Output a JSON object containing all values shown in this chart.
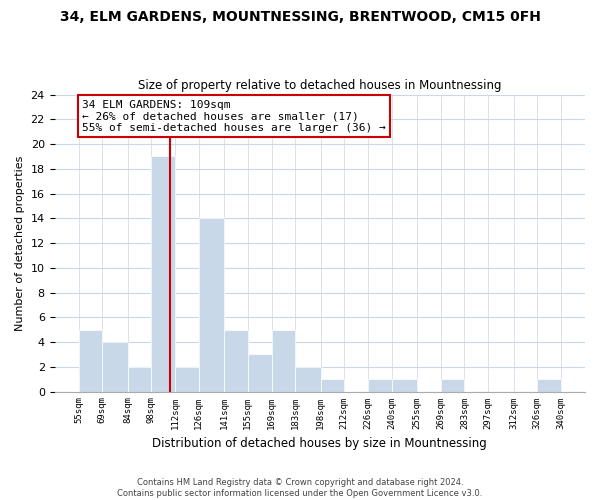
{
  "title": "34, ELM GARDENS, MOUNTNESSING, BRENTWOOD, CM15 0FH",
  "subtitle": "Size of property relative to detached houses in Mountnessing",
  "xlabel": "Distribution of detached houses by size in Mountnessing",
  "ylabel": "Number of detached properties",
  "bin_edges": [
    55,
    69,
    84,
    98,
    112,
    126,
    141,
    155,
    169,
    183,
    198,
    212,
    226,
    240,
    255,
    269,
    283,
    297,
    312,
    326,
    340
  ],
  "bin_labels": [
    "55sqm",
    "69sqm",
    "84sqm",
    "98sqm",
    "112sqm",
    "126sqm",
    "141sqm",
    "155sqm",
    "169sqm",
    "183sqm",
    "198sqm",
    "212sqm",
    "226sqm",
    "240sqm",
    "255sqm",
    "269sqm",
    "283sqm",
    "297sqm",
    "312sqm",
    "326sqm",
    "340sqm"
  ],
  "counts": [
    5,
    4,
    2,
    19,
    2,
    14,
    5,
    3,
    5,
    2,
    1,
    0,
    1,
    1,
    0,
    1,
    0,
    0,
    0,
    1
  ],
  "bar_color": "#c8d8e8",
  "bar_edge_color": "#ffffff",
  "property_line_x": 109,
  "property_line_color": "#cc0000",
  "annotation_line1": "34 ELM GARDENS: 109sqm",
  "annotation_line2": "← 26% of detached houses are smaller (17)",
  "annotation_line3": "55% of semi-detached houses are larger (36) →",
  "annotation_box_color": "#ffffff",
  "annotation_box_edge_color": "#cc0000",
  "ylim": [
    0,
    24
  ],
  "yticks": [
    0,
    2,
    4,
    6,
    8,
    10,
    12,
    14,
    16,
    18,
    20,
    22,
    24
  ],
  "footer_line1": "Contains HM Land Registry data © Crown copyright and database right 2024.",
  "footer_line2": "Contains public sector information licensed under the Open Government Licence v3.0.",
  "bg_color": "#ffffff",
  "grid_color": "#c8d8e8"
}
